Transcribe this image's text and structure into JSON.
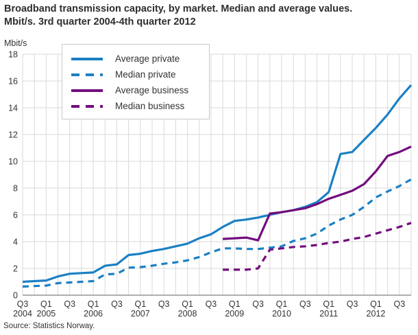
{
  "header": {
    "title_line1": "Broadband transmission capacity, by market. Median and average values.",
    "title_line2": "Mbit/s. 3rd quarter 2004-4th quarter 2012"
  },
  "source": {
    "text": "Source: Statistics Norway."
  },
  "colors": {
    "blue": "#1b80c4",
    "purple": "#730b7d",
    "grid": "#d9d9d9",
    "axis": "#7f7f7f",
    "tick_text": "#333333"
  },
  "chart_data": {
    "type": "line",
    "title": "Broadband transmission capacity, by market. Median and average values. Mbit/s. 3rd quarter 2004-4th quarter 2012",
    "xlabel": "",
    "ylabel": "Mbit/s",
    "ylim": [
      0,
      18
    ],
    "ytick_step": 2,
    "grid": true,
    "legend_position": "top-left",
    "categories": [
      "2004 Q3",
      "2004 Q4",
      "2005 Q1",
      "2005 Q2",
      "2005 Q3",
      "2005 Q4",
      "2006 Q1",
      "2006 Q2",
      "2006 Q3",
      "2006 Q4",
      "2007 Q1",
      "2007 Q2",
      "2007 Q3",
      "2007 Q4",
      "2008 Q1",
      "2008 Q2",
      "2008 Q3",
      "2008 Q4",
      "2009 Q1",
      "2009 Q2",
      "2009 Q3",
      "2009 Q4",
      "2010 Q1",
      "2010 Q2",
      "2010 Q3",
      "2010 Q4",
      "2011 Q1",
      "2011 Q2",
      "2011 Q3",
      "2011 Q4",
      "2012 Q1",
      "2012 Q2",
      "2012 Q3",
      "2012 Q4"
    ],
    "x_ticks": [
      {
        "i": 0,
        "label": "Q3",
        "year": "2004"
      },
      {
        "i": 2,
        "label": "Q1",
        "year": "2005"
      },
      {
        "i": 4,
        "label": "Q3"
      },
      {
        "i": 6,
        "label": "Q1",
        "year": "2006"
      },
      {
        "i": 8,
        "label": "Q3"
      },
      {
        "i": 10,
        "label": "Q1",
        "year": "2007"
      },
      {
        "i": 12,
        "label": "Q3"
      },
      {
        "i": 14,
        "label": "Q1",
        "year": "2008"
      },
      {
        "i": 16,
        "label": "Q3"
      },
      {
        "i": 18,
        "label": "Q1",
        "year": "2009"
      },
      {
        "i": 20,
        "label": "Q3"
      },
      {
        "i": 22,
        "label": "Q1",
        "year": "2010"
      },
      {
        "i": 24,
        "label": "Q3"
      },
      {
        "i": 26,
        "label": "Q1",
        "year": "2011"
      },
      {
        "i": 28,
        "label": "Q3"
      },
      {
        "i": 30,
        "label": "Q1",
        "year": "2012"
      },
      {
        "i": 32,
        "label": "Q3"
      }
    ],
    "series": [
      {
        "name": "Average private",
        "color": "#1b80c4",
        "dash": false,
        "values": [
          1.0,
          1.05,
          1.1,
          1.4,
          1.6,
          1.65,
          1.7,
          2.2,
          2.3,
          3.0,
          3.1,
          3.3,
          3.45,
          3.65,
          3.85,
          4.25,
          4.55,
          5.1,
          5.55,
          5.65,
          5.8,
          6.0,
          6.2,
          6.35,
          6.6,
          6.95,
          7.7,
          10.55,
          10.7,
          11.6,
          12.5,
          13.5,
          14.7,
          15.7
        ]
      },
      {
        "name": "Median private",
        "color": "#1b80c4",
        "dash": true,
        "values": [
          0.64,
          0.68,
          0.72,
          0.9,
          0.95,
          1.0,
          1.05,
          1.55,
          1.6,
          2.05,
          2.1,
          2.2,
          2.35,
          2.45,
          2.6,
          2.85,
          3.2,
          3.5,
          3.5,
          3.45,
          3.45,
          3.55,
          3.65,
          4.05,
          4.25,
          4.6,
          5.2,
          5.65,
          6.0,
          6.6,
          7.3,
          7.75,
          8.15,
          8.65
        ]
      },
      {
        "name": "Average business",
        "color": "#730b7d",
        "dash": false,
        "values": [
          null,
          null,
          null,
          null,
          null,
          null,
          null,
          null,
          null,
          null,
          null,
          null,
          null,
          null,
          null,
          null,
          null,
          4.2,
          4.25,
          4.3,
          4.1,
          6.1,
          6.2,
          6.35,
          6.5,
          6.8,
          7.2,
          7.5,
          7.8,
          8.3,
          9.25,
          10.4,
          10.7,
          11.1
        ]
      },
      {
        "name": "Median business",
        "color": "#730b7d",
        "dash": true,
        "values": [
          null,
          null,
          null,
          null,
          null,
          null,
          null,
          null,
          null,
          null,
          null,
          null,
          null,
          null,
          null,
          null,
          null,
          1.9,
          1.9,
          1.9,
          2.0,
          3.4,
          3.5,
          3.6,
          3.65,
          3.75,
          3.9,
          4.0,
          4.2,
          4.35,
          4.6,
          4.85,
          5.1,
          5.4
        ]
      }
    ]
  }
}
